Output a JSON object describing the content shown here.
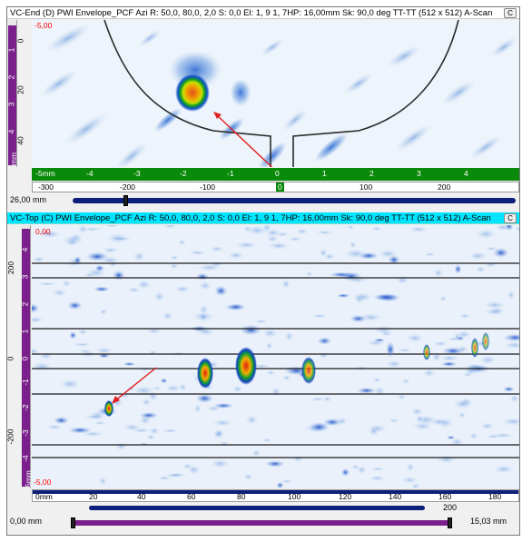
{
  "end_view": {
    "title": "VC-End (D) PWI Envelope_PCF Azi R: 50,0, 80,0, 2,0 S: 0,0 El: 1, 9 1, 7HP: 16,00mm Sk: 90,0 deg TT-TT (512 x 512) A-Scan",
    "depth_ruler_labels": [
      "0",
      "20",
      "40"
    ],
    "depth_ruler_unit": "mm",
    "depth_ruler_sublabels": [
      "1",
      "2",
      "3",
      "4",
      "5"
    ],
    "top_value": "-5,00",
    "green_ruler_labels": [
      "-5mm",
      "-4",
      "-3",
      "-2",
      "-1",
      "0",
      "1",
      "2",
      "3",
      "4"
    ],
    "scale_labels": [
      "-300",
      "-200",
      "-100",
      "0",
      "100",
      "200"
    ],
    "thumb_label": "0",
    "left_value": "26,00 mm"
  },
  "top_view": {
    "title": "VC-Top (C) PWI Envelope_PCF Azi R: 50,0, 80,0, 2,0 S: 0,0 El: 1, 9 1, 7HP: 16,00mm Sk: 90,0 deg TT-TT (512 x 512) A-Scan",
    "top_value": "0,00",
    "bottom_value": "-5,00",
    "left_ruler_labels": [
      "200",
      "0",
      "-200"
    ],
    "left_ruler_sublabels": [
      "4",
      "3",
      "2",
      "1",
      "0",
      "-1",
      "-2",
      "-3",
      "-4",
      "-5mm"
    ],
    "x_ruler_labels": [
      "0mm",
      "20",
      "40",
      "60",
      "80",
      "100",
      "120",
      "140",
      "160",
      "180"
    ],
    "sub_scale_label": "200",
    "bottom_left_value": "0,00 mm",
    "bottom_right_value": "15,03 mm"
  },
  "colors": {
    "green_ruler": "#0a8a0a",
    "slider_blue": "#0d1f7a",
    "slider_purple": "#7a1f8c",
    "title_top_bg": "#00e5ff",
    "arrow": "#e02020"
  }
}
